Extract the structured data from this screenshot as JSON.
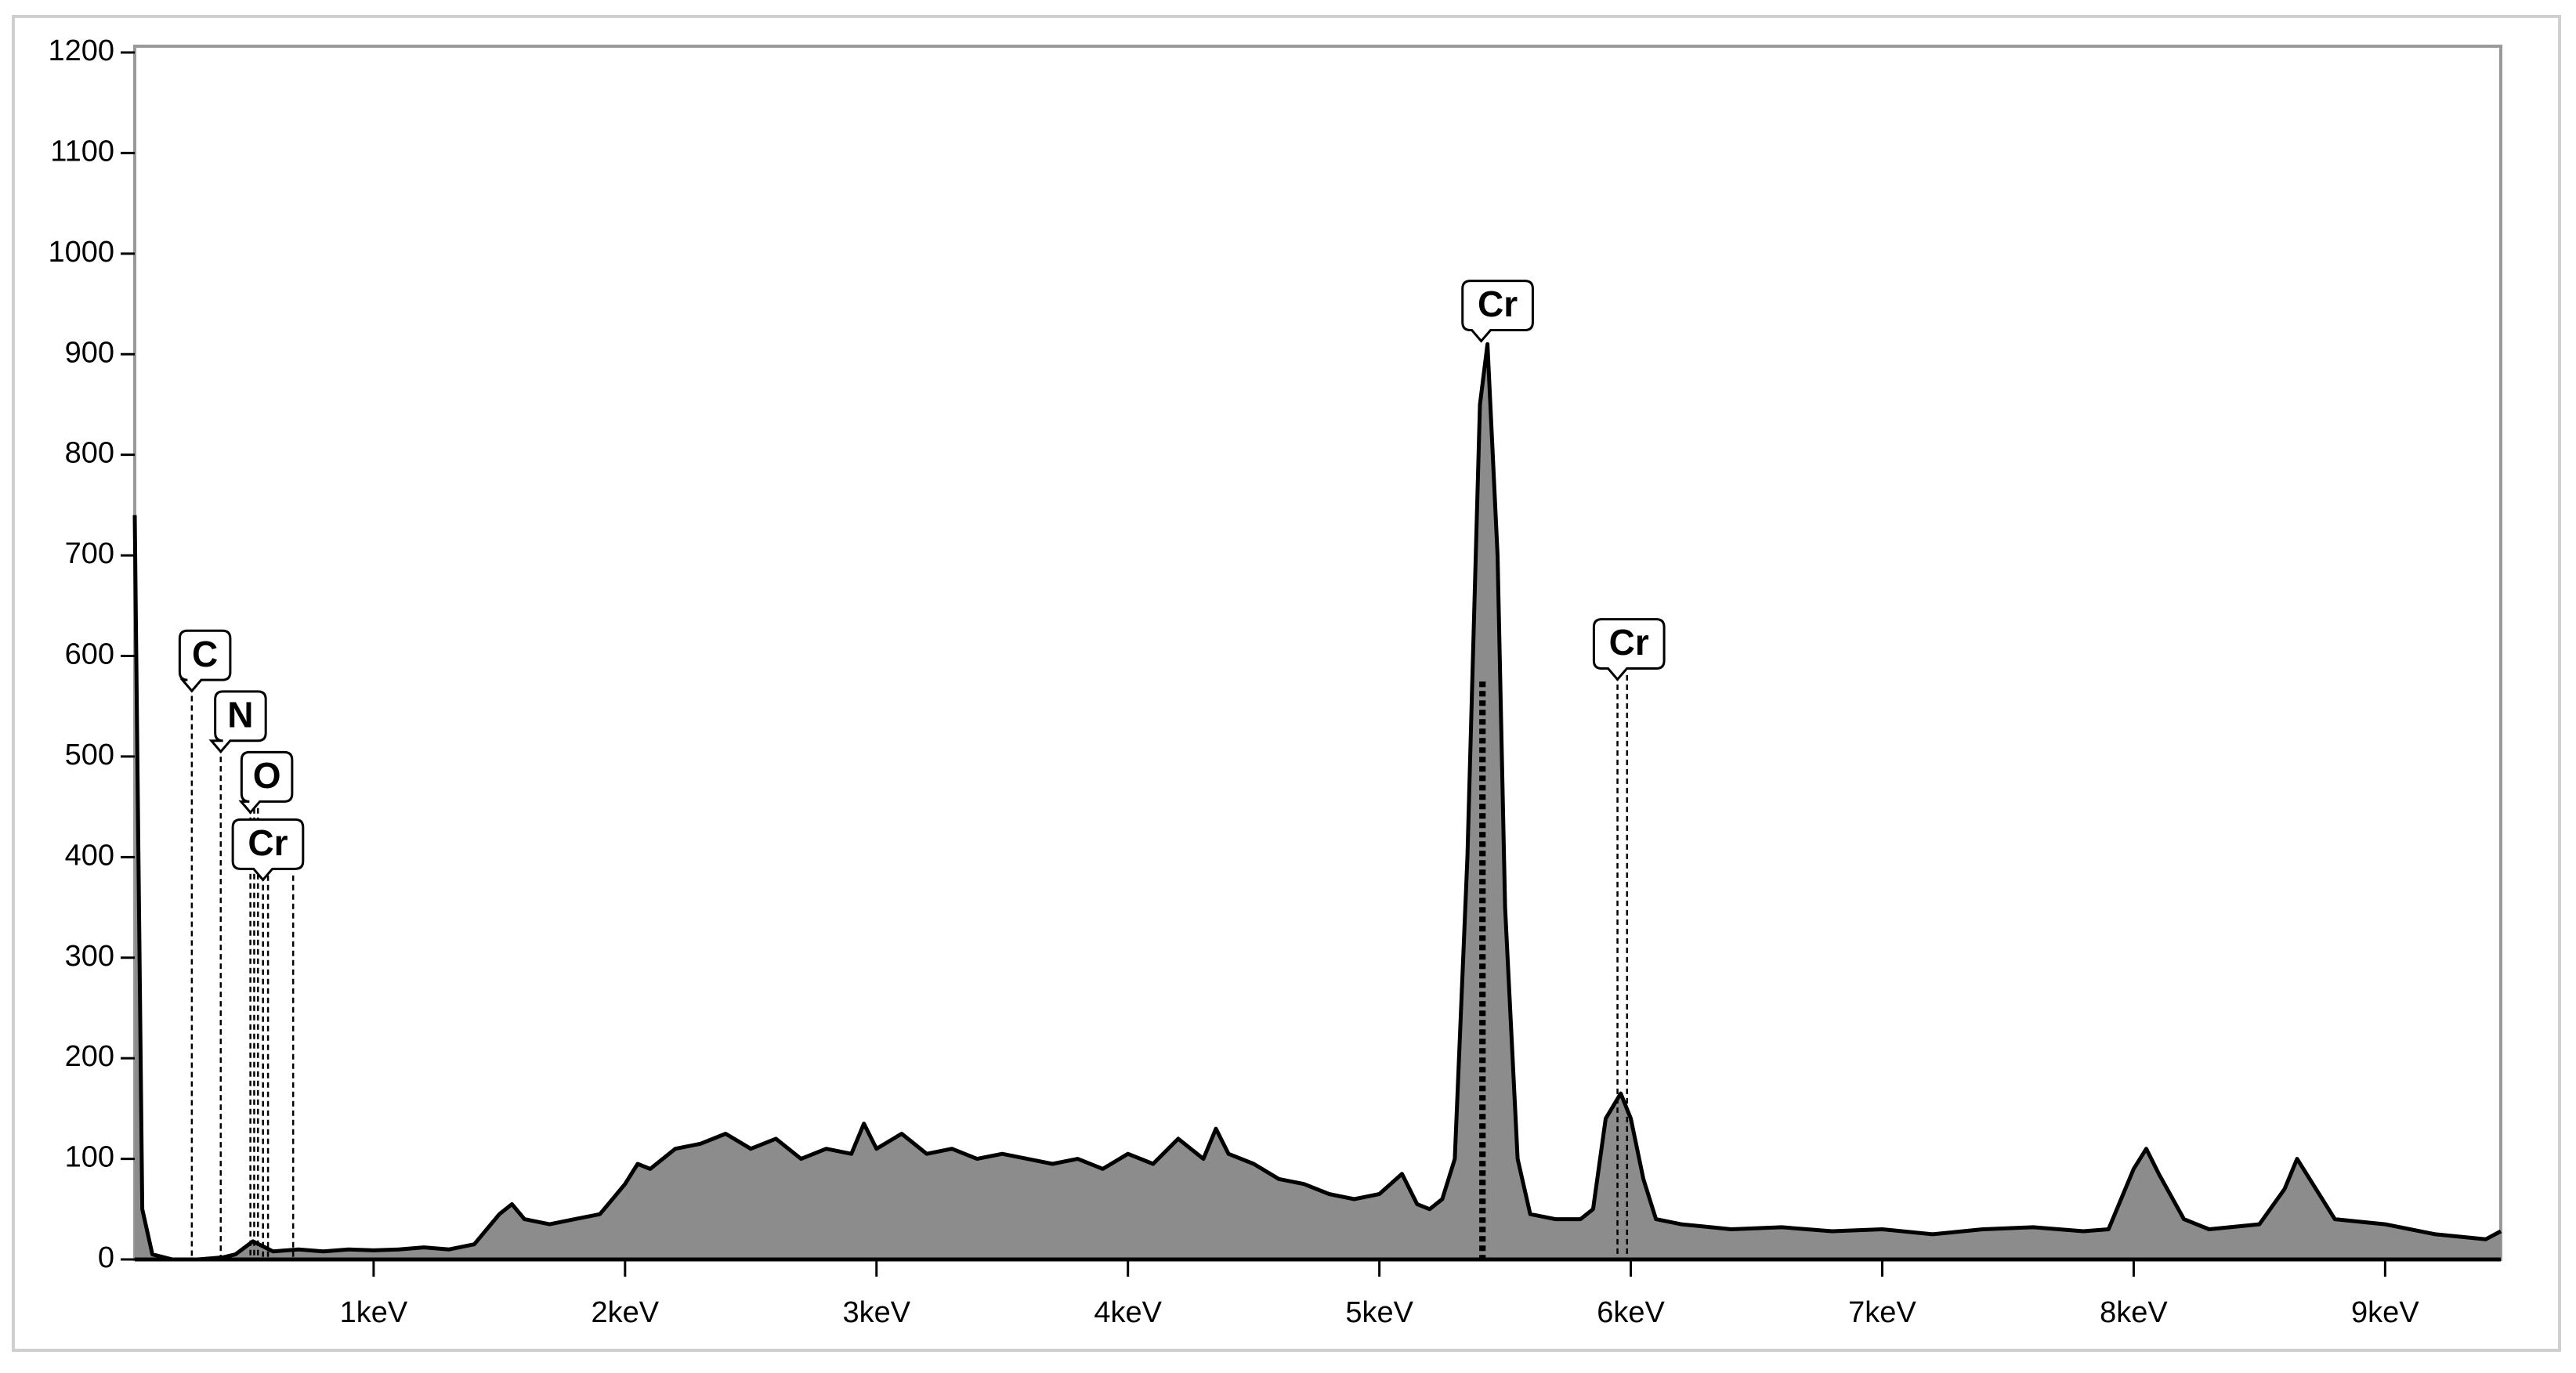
{
  "chart_data": {
    "type": "area",
    "color": "#8c8c8c",
    "x": [
      0.05,
      0.08,
      0.12,
      0.2,
      0.3,
      0.4,
      0.45,
      0.52,
      0.6,
      0.7,
      0.8,
      0.9,
      1.0,
      1.1,
      1.2,
      1.3,
      1.4,
      1.45,
      1.5,
      1.55,
      1.6,
      1.7,
      1.8,
      1.9,
      1.95,
      2.0,
      2.05,
      2.1,
      2.2,
      2.3,
      2.4,
      2.5,
      2.6,
      2.7,
      2.8,
      2.9,
      2.95,
      3.0,
      3.1,
      3.2,
      3.3,
      3.4,
      3.5,
      3.6,
      3.7,
      3.8,
      3.9,
      4.0,
      4.1,
      4.2,
      4.3,
      4.35,
      4.4,
      4.5,
      4.6,
      4.7,
      4.8,
      4.9,
      5.0,
      5.09,
      5.15,
      5.2,
      5.25,
      5.3,
      5.35,
      5.4,
      5.43,
      5.47,
      5.5,
      5.55,
      5.6,
      5.7,
      5.8,
      5.85,
      5.9,
      5.96,
      6.0,
      6.05,
      6.1,
      6.2,
      6.4,
      6.6,
      6.8,
      7.0,
      7.2,
      7.4,
      7.6,
      7.8,
      7.9,
      8.0,
      8.05,
      8.1,
      8.2,
      8.3,
      8.5,
      8.6,
      8.65,
      8.7,
      8.8,
      9.0,
      9.2,
      9.4,
      9.46
    ],
    "values": [
      740,
      50,
      5,
      0,
      0,
      2,
      5,
      18,
      8,
      10,
      8,
      10,
      9,
      10,
      12,
      10,
      15,
      30,
      45,
      55,
      40,
      35,
      40,
      45,
      60,
      75,
      95,
      90,
      110,
      115,
      125,
      110,
      120,
      100,
      110,
      105,
      135,
      110,
      125,
      105,
      110,
      100,
      105,
      100,
      95,
      100,
      90,
      105,
      95,
      120,
      100,
      130,
      105,
      95,
      80,
      75,
      65,
      60,
      65,
      85,
      55,
      50,
      60,
      100,
      400,
      850,
      910,
      700,
      350,
      100,
      45,
      40,
      40,
      50,
      140,
      165,
      140,
      80,
      40,
      35,
      30,
      32,
      28,
      30,
      25,
      30,
      32,
      28,
      30,
      90,
      110,
      85,
      40,
      30,
      35,
      70,
      100,
      80,
      40,
      35,
      25,
      20,
      28
    ],
    "xlim": [
      0.05,
      9.46
    ],
    "ylim": [
      0,
      1200
    ],
    "yticks": [
      0,
      100,
      200,
      300,
      400,
      500,
      600,
      700,
      800,
      900,
      1000,
      1100,
      1200
    ],
    "xticks": [
      {
        "value": 1,
        "label": "1keV"
      },
      {
        "value": 2,
        "label": "2keV"
      },
      {
        "value": 3,
        "label": "3keV"
      },
      {
        "value": 4,
        "label": "4keV"
      },
      {
        "value": 5,
        "label": "5keV"
      },
      {
        "value": 6,
        "label": "6keV"
      },
      {
        "value": 7,
        "label": "7keV"
      },
      {
        "value": 8,
        "label": "8keV"
      },
      {
        "value": 9,
        "label": "9keV"
      }
    ],
    "annotations": [
      {
        "label": "C",
        "x": [
          0.277
        ]
      },
      {
        "label": "N",
        "x": [
          0.392
        ]
      },
      {
        "label": "O",
        "x": [
          0.51,
          0.525,
          0.54
        ]
      },
      {
        "label": "Cr",
        "x": [
          0.56,
          0.58,
          0.68
        ]
      },
      {
        "label": "Cr",
        "x": [
          5.405,
          5.415
        ]
      },
      {
        "label": "Cr",
        "x": [
          5.947,
          5.985
        ]
      }
    ]
  }
}
